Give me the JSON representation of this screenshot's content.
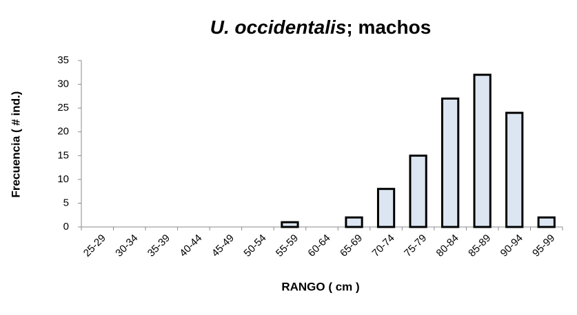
{
  "chart_data": {
    "type": "bar",
    "title": [
      "U. occidentalis",
      "; machos"
    ],
    "x_label": "RANGO ( cm )",
    "y_label": "Frecuencia ( # ind.)",
    "categories": [
      "25-29",
      "30-34",
      "35-39",
      "40-44",
      "45-49",
      "50-54",
      "55-59",
      "60-64",
      "65-69",
      "70-74",
      "75-79",
      "80-84",
      "85-89",
      "90-94",
      "95-99"
    ],
    "values": [
      0,
      0,
      0,
      0,
      0,
      0,
      1,
      0,
      2,
      8,
      15,
      27,
      32,
      24,
      2
    ],
    "color": "#dce6f2",
    "ylim": [
      0,
      35
    ],
    "yticks": [
      0,
      5,
      10,
      15,
      20,
      25,
      30,
      35
    ],
    "grid": false
  }
}
